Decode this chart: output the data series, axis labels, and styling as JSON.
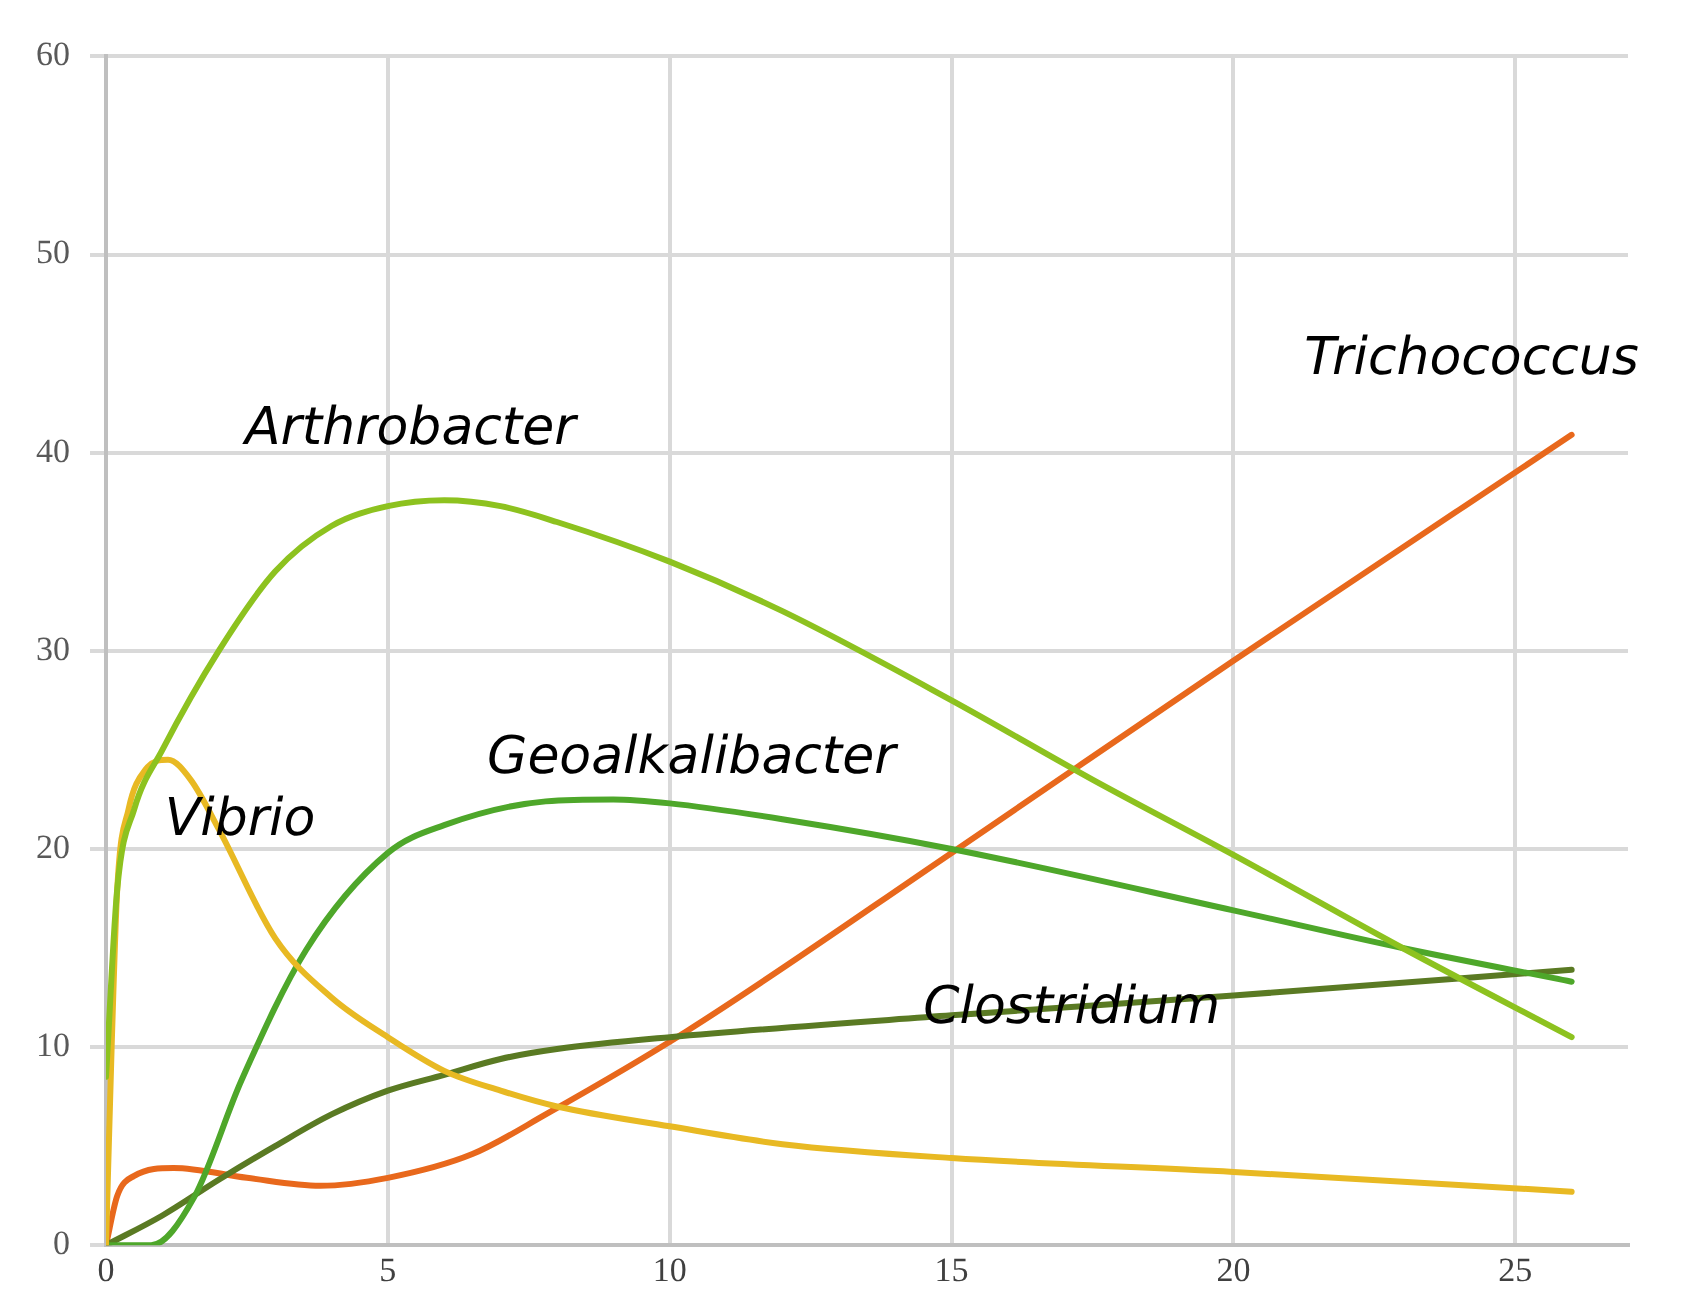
{
  "chart_data": {
    "type": "line",
    "xlim": [
      0,
      27
    ],
    "xticks": [
      0,
      5,
      10,
      15,
      20,
      25
    ],
    "ylim": [
      0,
      60
    ],
    "yticks": [
      0,
      10,
      20,
      30,
      40,
      50,
      60
    ],
    "grid": true,
    "legend": false,
    "marker": "none",
    "line_style": "solid",
    "series": [
      {
        "name": "Arthrobacter",
        "color": "#8dc21f",
        "x": [
          0,
          0.2,
          0.5,
          1,
          2,
          3,
          4,
          5,
          6,
          7,
          8,
          10,
          12,
          15,
          17.5,
          20,
          23,
          26
        ],
        "values": [
          8.5,
          18,
          22,
          25,
          30,
          34,
          36.3,
          37.3,
          37.6,
          37.3,
          36.5,
          34.5,
          32,
          27.5,
          23.5,
          19.7,
          15,
          10.5
        ]
      },
      {
        "name": "Vibrio",
        "color": "#e8b923",
        "x": [
          0,
          0.1,
          0.2,
          0.4,
          0.7,
          1.1,
          1.5,
          2,
          3,
          4,
          5,
          6,
          7,
          8,
          10,
          12,
          15,
          20,
          26
        ],
        "values": [
          0,
          10,
          18,
          22,
          24,
          24.5,
          23.5,
          21,
          15.5,
          12.5,
          10.5,
          8.8,
          7.8,
          7,
          6,
          5.1,
          4.4,
          3.7,
          2.7
        ]
      },
      {
        "name": "Geoalkalibacter",
        "color": "#4ea72a",
        "x": [
          0,
          0.8,
          1.56,
          2.4,
          3.55,
          5,
          6,
          7.8,
          9,
          10,
          12,
          15,
          20,
          23,
          26
        ],
        "values": [
          0,
          0,
          2.4,
          8.3,
          14.9,
          19.8,
          21.2,
          22.4,
          22.5,
          22.3,
          21.5,
          20,
          16.9,
          15,
          13.3
        ]
      },
      {
        "name": "Clostridium",
        "color": "#5a7a23",
        "x": [
          0,
          1,
          2,
          3,
          4,
          5,
          6,
          7,
          8,
          10,
          15,
          20,
          26
        ],
        "values": [
          0,
          1.5,
          3.3,
          5,
          6.6,
          7.8,
          8.6,
          9.4,
          9.9,
          10.5,
          11.6,
          12.6,
          13.9
        ]
      },
      {
        "name": "Trichococcus",
        "color": "#e8681c",
        "x": [
          0,
          0.2,
          0.5,
          1.2,
          2.5,
          3.8,
          5,
          6.5,
          7.8,
          10.3,
          15,
          20,
          26
        ],
        "values": [
          0,
          2.5,
          3.5,
          3.9,
          3.4,
          3,
          3.4,
          4.6,
          6.6,
          10.8,
          19.8,
          29.5,
          40.9
        ]
      }
    ]
  }
}
